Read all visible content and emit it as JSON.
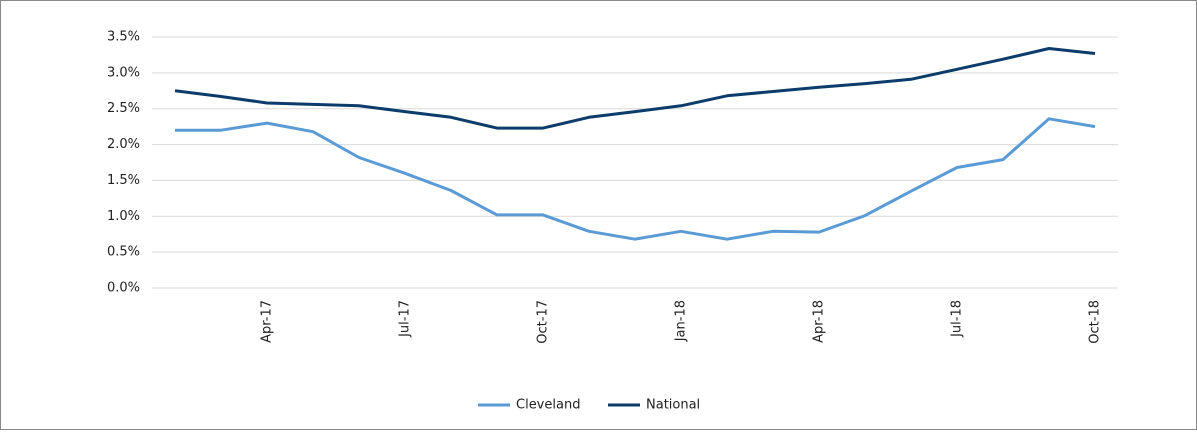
{
  "chart_data": {
    "type": "line",
    "categories": [
      null,
      null,
      "Apr-17",
      null,
      null,
      "Jul-17",
      null,
      null,
      "Oct-17",
      null,
      null,
      "Jan-18",
      null,
      null,
      "Apr-18",
      null,
      null,
      "Jul-18",
      null,
      null,
      "Oct-18"
    ],
    "series": [
      {
        "name": "Cleveland",
        "color": "#5b9bd5",
        "values": [
          2.2,
          2.2,
          2.3,
          2.18,
          1.82,
          1.6,
          1.36,
          1.02,
          1.02,
          0.79,
          0.68,
          0.79,
          0.68,
          0.79,
          0.78,
          1.01,
          1.35,
          1.68,
          1.79,
          2.36,
          2.25
        ]
      },
      {
        "name": "National",
        "color": "#0b3c6b",
        "values": [
          2.75,
          2.67,
          2.58,
          2.56,
          2.54,
          2.46,
          2.38,
          2.23,
          2.23,
          2.38,
          2.46,
          2.54,
          2.68,
          2.74,
          2.8,
          2.85,
          2.91,
          3.05,
          3.19,
          3.34,
          3.27
        ]
      }
    ],
    "ylim": [
      0,
      3.5
    ],
    "yticks": [
      {
        "value": 0,
        "label": "0.0%"
      },
      {
        "value": 0.5,
        "label": "0.5%"
      },
      {
        "value": 1,
        "label": "1.0%"
      },
      {
        "value": 1.5,
        "label": "1.5%"
      },
      {
        "value": 2,
        "label": "2.0%"
      },
      {
        "value": 2.5,
        "label": "2.5%"
      },
      {
        "value": 3,
        "label": "3.0%"
      },
      {
        "value": 3.5,
        "label": "3.5%"
      }
    ],
    "grid": true,
    "legend": "bottom"
  }
}
